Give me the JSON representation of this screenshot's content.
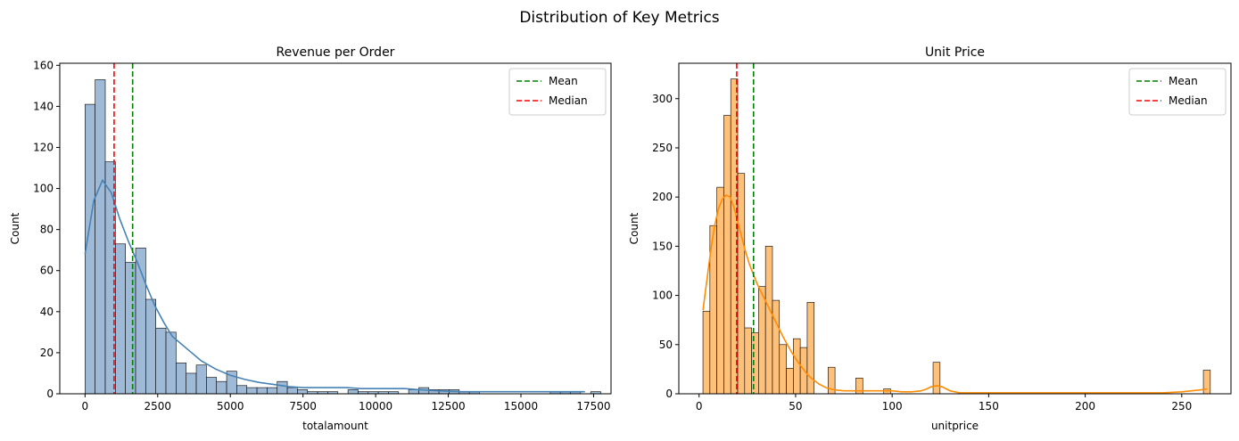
{
  "figure": {
    "suptitle": "Distribution of Key Metrics"
  },
  "colors": {
    "left_bar_fill": "#9fbad6",
    "left_kde": "#4682b4",
    "right_bar_fill": "#ffc07a",
    "right_kde": "#ff8c00",
    "mean_line": "#008000",
    "median_line": "#ff0000",
    "edge": "#000000",
    "spine": "#000000"
  },
  "chart_data": [
    {
      "type": "histogram",
      "title": "Revenue per Order",
      "xlabel": "totalamount",
      "ylabel": "Count",
      "xlim": [
        -870,
        18100
      ],
      "ylim": [
        0,
        161
      ],
      "xticks": [
        0,
        2500,
        5000,
        7500,
        10000,
        12500,
        15000,
        17500
      ],
      "xtick_labels": [
        "0",
        "2500",
        "5000",
        "7500",
        "10000",
        "12500",
        "15000",
        "17500"
      ],
      "yticks": [
        0,
        20,
        40,
        60,
        80,
        100,
        120,
        140,
        160
      ],
      "ytick_labels": [
        "0",
        "20",
        "40",
        "60",
        "80",
        "100",
        "120",
        "140",
        "160"
      ],
      "bin_start": 0,
      "bin_width": 348,
      "counts": [
        141,
        153,
        113,
        73,
        64,
        71,
        46,
        32,
        30,
        15,
        10,
        14,
        8,
        6,
        11,
        4,
        3,
        3,
        3,
        6,
        3,
        2,
        1,
        1,
        1,
        0,
        2,
        1,
        1,
        1,
        1,
        0,
        2,
        3,
        2,
        2,
        2,
        1,
        1,
        0,
        0,
        0,
        0,
        0,
        0,
        0,
        1,
        1,
        1,
        0,
        1
      ],
      "kde": {
        "x": [
          0,
          300,
          600,
          900,
          1200,
          1500,
          1800,
          2100,
          2400,
          2700,
          3000,
          3500,
          4000,
          4500,
          5000,
          5500,
          6000,
          6500,
          7000,
          7500,
          8000,
          8500,
          9000,
          9500,
          10000,
          10500,
          11000,
          11500,
          12000,
          12500,
          13000,
          14000,
          15000,
          16000,
          17000,
          17200
        ],
        "y": [
          68,
          94,
          104,
          98,
          85,
          74,
          64,
          53,
          43,
          35,
          28,
          22,
          16,
          12,
          9,
          7,
          5.5,
          4.5,
          3.5,
          3,
          3,
          3,
          3,
          2.5,
          2.5,
          2.5,
          2.5,
          2,
          1.5,
          1.2,
          1,
          1,
          1,
          1,
          1,
          1
        ]
      },
      "mean": 1637,
      "median": 1000,
      "legend": {
        "position": "upper right",
        "entries": [
          "Mean",
          "Median"
        ]
      },
      "grid": false
    },
    {
      "type": "histogram",
      "title": "Unit Price",
      "xlabel": "unitprice",
      "ylabel": "Count",
      "xlim": [
        -10.5,
        275.5
      ],
      "ylim": [
        0,
        336
      ],
      "xticks": [
        0,
        50,
        100,
        150,
        200,
        250
      ],
      "xtick_labels": [
        "0",
        "50",
        "100",
        "150",
        "200",
        "250"
      ],
      "yticks": [
        0,
        50,
        100,
        150,
        200,
        250,
        300
      ],
      "ytick_labels": [
        "0",
        "50",
        "100",
        "150",
        "200",
        "250",
        "300"
      ],
      "bin_start": 2,
      "bin_width": 3.6,
      "counts": [
        84,
        171,
        210,
        283,
        320,
        224,
        67,
        62,
        109,
        150,
        95,
        50,
        26,
        56,
        47,
        93,
        0,
        0,
        27,
        0,
        0,
        0,
        16,
        0,
        0,
        0,
        5,
        0,
        0,
        0,
        0,
        0,
        0,
        0,
        0,
        0,
        0,
        0,
        0,
        0,
        0,
        0,
        0,
        0,
        0,
        0,
        0,
        0,
        0,
        0,
        0,
        0,
        0,
        0,
        0,
        0,
        0,
        0,
        0,
        0,
        0,
        0,
        0,
        0,
        0,
        0,
        0,
        0,
        0,
        0,
        0,
        0,
        24
      ],
      "extra_bins": [
        {
          "start": 121.2,
          "count": 32
        }
      ],
      "kde": {
        "x": [
          2,
          4,
          6,
          8,
          10,
          12,
          14,
          16,
          18,
          20,
          22,
          24,
          26,
          28,
          30,
          32,
          34,
          36,
          38,
          40,
          42,
          44,
          46,
          48,
          50,
          52,
          54,
          56,
          58,
          60,
          62,
          64,
          66,
          68,
          70,
          75,
          80,
          85,
          90,
          95,
          100,
          105,
          110,
          115,
          118,
          120,
          122,
          124,
          126,
          128,
          130,
          135,
          140,
          150,
          160,
          180,
          200,
          220,
          240,
          250,
          255,
          260,
          263
        ],
        "y": [
          85,
          115,
          145,
          170,
          188,
          198,
          202,
          200,
          190,
          175,
          160,
          145,
          132,
          122,
          112,
          104,
          96,
          88,
          80,
          72,
          64,
          56,
          49,
          42,
          36,
          30,
          25,
          20,
          16,
          13,
          10,
          8,
          6,
          5,
          4,
          3,
          3,
          3,
          3,
          3,
          3,
          2,
          2,
          3,
          5,
          7,
          8,
          8,
          7,
          5,
          3,
          1,
          1,
          1,
          1,
          1,
          1,
          1,
          1,
          2,
          3,
          4,
          5
        ]
      },
      "mean": 28.2,
      "median": 19.5,
      "legend": {
        "position": "upper right",
        "entries": [
          "Mean",
          "Median"
        ]
      },
      "grid": false
    }
  ]
}
